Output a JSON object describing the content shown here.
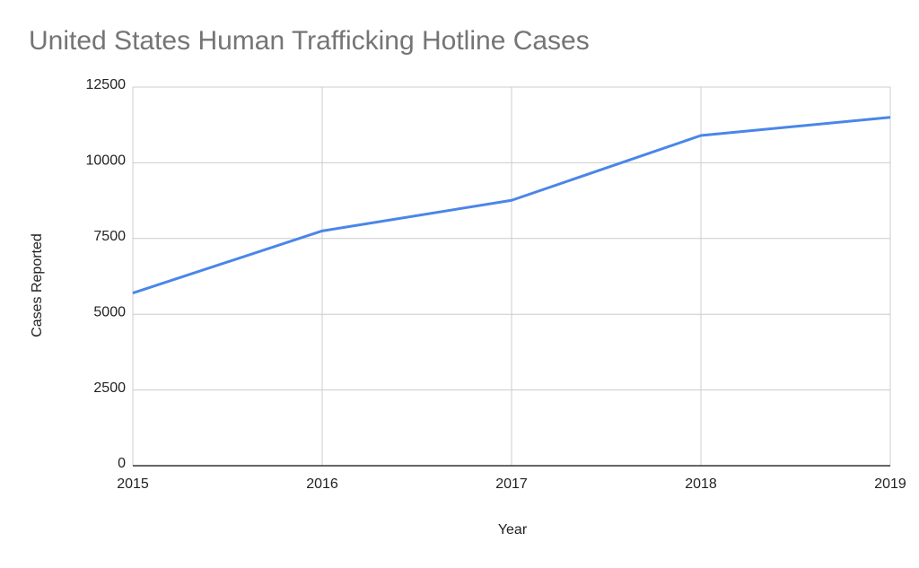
{
  "chart_data": {
    "type": "line",
    "title": "United States Human Trafficking Hotline Cases",
    "x_label": "Year",
    "y_label": "Cases Reported",
    "x": [
      2015,
      2016,
      2017,
      2018,
      2019
    ],
    "series": [
      {
        "name": "Cases Reported",
        "color": "#4a86e8",
        "values": [
          5700,
          7750,
          8760,
          10900,
          11500
        ]
      }
    ],
    "xlim": [
      2015,
      2019
    ],
    "xticks": [
      2015,
      2016,
      2017,
      2018,
      2019
    ],
    "ylim": [
      0,
      12500
    ],
    "yticks": [
      0,
      2500,
      5000,
      7500,
      10000,
      12500
    ],
    "grid": true
  }
}
